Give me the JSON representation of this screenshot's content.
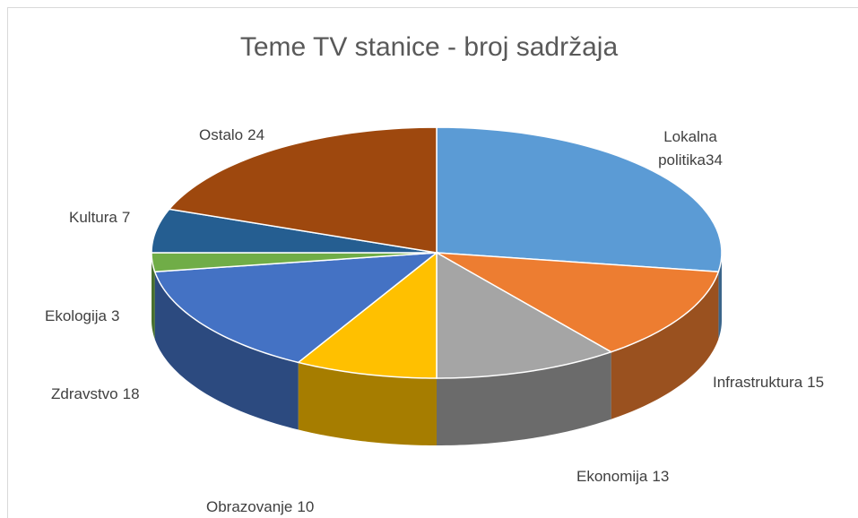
{
  "chart_data": {
    "type": "pie3d",
    "title": "Teme TV stanice - broj sadržaja",
    "categories": [
      "Lokalna politika",
      "Infrastruktura",
      "Ekonomija",
      "Obrazovanje",
      "Zdravstvo",
      "Ekologija",
      "Kultura",
      "Ostalo"
    ],
    "values": [
      34,
      15,
      13,
      10,
      18,
      3,
      7,
      24
    ],
    "colors": [
      "#5b9bd5",
      "#ed7d31",
      "#a5a5a5",
      "#ffc000",
      "#4472c4",
      "#70ad47",
      "#255e91",
      "#9e480e"
    ]
  }
}
